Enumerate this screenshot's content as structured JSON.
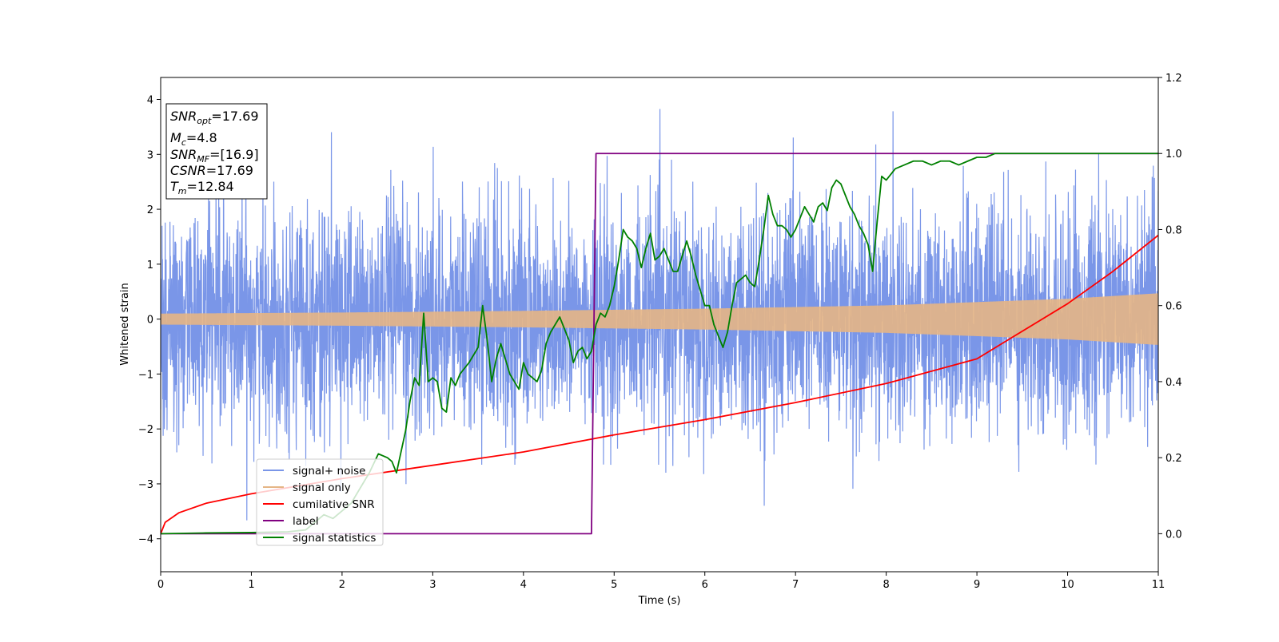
{
  "chart_data": {
    "type": "line",
    "title": "",
    "xlabel": "Time (s)",
    "ylabel": "Whitened strain",
    "y2label": "",
    "xlim": [
      0,
      11
    ],
    "ylim": [
      -4.6,
      4.4
    ],
    "y2lim": [
      -0.1,
      1.2
    ],
    "x_ticks": [
      0,
      1,
      2,
      3,
      4,
      5,
      6,
      7,
      8,
      9,
      10,
      11
    ],
    "y_ticks": [
      -4,
      -3,
      -2,
      -1,
      0,
      1,
      2,
      3,
      4
    ],
    "y2_ticks": [
      0.0,
      0.2,
      0.4,
      0.6,
      0.8,
      1.0,
      1.2
    ],
    "x_tick_labels": [
      "0",
      "1",
      "2",
      "3",
      "4",
      "5",
      "6",
      "7",
      "8",
      "9",
      "10",
      "11"
    ],
    "y_tick_labels": [
      "−4",
      "−3",
      "−2",
      "−1",
      "0",
      "1",
      "2",
      "3",
      "4"
    ],
    "y2_tick_labels": [
      "0.0",
      "0.2",
      "0.4",
      "0.6",
      "0.8",
      "1.0",
      "1.2"
    ],
    "grid": false,
    "legend_position": "lower-left",
    "info_box": {
      "lines": [
        {
          "italic": "SNR",
          "sub": "opt",
          "rest": "=17.69"
        },
        {
          "italic": "M",
          "sub": "c",
          "rest": "=4.8"
        },
        {
          "italic": "SNR",
          "sub": "MF",
          "rest": "=[16.9]"
        },
        {
          "italic": "CSNR",
          "sub": "",
          "rest": "=17.69"
        },
        {
          "italic": "T",
          "sub": "m",
          "rest": "=12.84"
        }
      ]
    },
    "series": [
      {
        "name": "signal+ noise",
        "color": "#7a96e8",
        "axis": "left",
        "noise_sigma": 1.0,
        "noise_range": [
          -4.0,
          4.0
        ]
      },
      {
        "name": "signal only",
        "color": "#e5b585",
        "axis": "left",
        "envelope": {
          "x": [
            0,
            2,
            4,
            6,
            8,
            10,
            11
          ],
          "amplitude": [
            0.1,
            0.12,
            0.15,
            0.19,
            0.25,
            0.37,
            0.47
          ]
        }
      },
      {
        "name": "cumilative SNR",
        "color": "#ff0000",
        "axis": "right",
        "x": [
          0,
          0.05,
          0.2,
          0.5,
          1,
          2,
          3,
          4,
          5,
          6,
          7,
          8,
          9,
          10,
          10.5,
          11
        ],
        "y": [
          0.0,
          0.03,
          0.055,
          0.08,
          0.105,
          0.145,
          0.18,
          0.215,
          0.26,
          0.3,
          0.345,
          0.395,
          0.46,
          0.605,
          0.69,
          0.785
        ]
      },
      {
        "name": "label",
        "color": "#800080",
        "axis": "right",
        "x": [
          0,
          4.75,
          4.8,
          11
        ],
        "y": [
          0,
          0,
          1,
          1
        ]
      },
      {
        "name": "signal statistics",
        "color": "#008000",
        "axis": "right",
        "x": [
          0,
          0.5,
          1.0,
          1.4,
          1.6,
          1.7,
          1.8,
          1.9,
          2.0,
          2.1,
          2.2,
          2.3,
          2.4,
          2.5,
          2.55,
          2.6,
          2.7,
          2.75,
          2.8,
          2.85,
          2.9,
          2.95,
          3.0,
          3.05,
          3.1,
          3.15,
          3.2,
          3.25,
          3.3,
          3.4,
          3.5,
          3.55,
          3.6,
          3.65,
          3.7,
          3.75,
          3.8,
          3.85,
          3.9,
          3.95,
          4.0,
          4.05,
          4.1,
          4.15,
          4.2,
          4.25,
          4.3,
          4.35,
          4.4,
          4.45,
          4.5,
          4.55,
          4.6,
          4.65,
          4.7,
          4.75,
          4.8,
          4.85,
          4.9,
          4.95,
          5.0,
          5.05,
          5.1,
          5.15,
          5.2,
          5.25,
          5.3,
          5.35,
          5.4,
          5.45,
          5.5,
          5.55,
          5.6,
          5.65,
          5.7,
          5.75,
          5.8,
          5.85,
          5.9,
          5.95,
          6.0,
          6.05,
          6.1,
          6.15,
          6.2,
          6.25,
          6.3,
          6.35,
          6.4,
          6.45,
          6.5,
          6.55,
          6.6,
          6.65,
          6.7,
          6.75,
          6.8,
          6.85,
          6.9,
          6.95,
          7.0,
          7.05,
          7.1,
          7.15,
          7.2,
          7.25,
          7.3,
          7.35,
          7.4,
          7.45,
          7.5,
          7.55,
          7.6,
          7.65,
          7.7,
          7.75,
          7.8,
          7.85,
          7.9,
          7.95,
          8.0,
          8.1,
          8.2,
          8.3,
          8.4,
          8.5,
          8.6,
          8.7,
          8.8,
          8.9,
          9.0,
          9.1,
          9.2,
          9.3,
          9.4,
          9.6,
          9.8,
          10.0,
          11.0
        ],
        "y": [
          0.0,
          0.002,
          0.003,
          0.005,
          0.01,
          0.03,
          0.05,
          0.04,
          0.06,
          0.08,
          0.12,
          0.16,
          0.21,
          0.2,
          0.19,
          0.16,
          0.27,
          0.35,
          0.41,
          0.39,
          0.58,
          0.4,
          0.41,
          0.4,
          0.33,
          0.32,
          0.41,
          0.39,
          0.42,
          0.45,
          0.49,
          0.6,
          0.51,
          0.4,
          0.46,
          0.5,
          0.46,
          0.42,
          0.4,
          0.38,
          0.45,
          0.42,
          0.41,
          0.4,
          0.43,
          0.5,
          0.53,
          0.55,
          0.57,
          0.54,
          0.51,
          0.45,
          0.48,
          0.49,
          0.46,
          0.48,
          0.55,
          0.58,
          0.57,
          0.6,
          0.65,
          0.72,
          0.8,
          0.78,
          0.77,
          0.75,
          0.7,
          0.75,
          0.79,
          0.72,
          0.73,
          0.75,
          0.72,
          0.69,
          0.69,
          0.73,
          0.77,
          0.73,
          0.68,
          0.64,
          0.6,
          0.6,
          0.55,
          0.52,
          0.49,
          0.53,
          0.6,
          0.66,
          0.67,
          0.68,
          0.66,
          0.65,
          0.72,
          0.8,
          0.89,
          0.84,
          0.81,
          0.81,
          0.8,
          0.78,
          0.8,
          0.83,
          0.86,
          0.84,
          0.82,
          0.86,
          0.87,
          0.85,
          0.91,
          0.93,
          0.92,
          0.89,
          0.86,
          0.84,
          0.81,
          0.79,
          0.76,
          0.69,
          0.82,
          0.94,
          0.93,
          0.96,
          0.97,
          0.98,
          0.98,
          0.97,
          0.98,
          0.98,
          0.97,
          0.98,
          0.99,
          0.99,
          1.0,
          1.0,
          1.0,
          1.0,
          1.0,
          1.0,
          1.0
        ]
      }
    ]
  }
}
